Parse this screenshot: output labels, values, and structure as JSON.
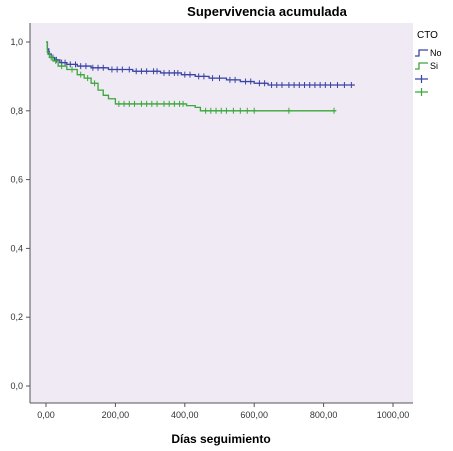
{
  "chart_data": {
    "type": "line",
    "title": "Supervivencia acumulada",
    "xlabel": "Días seguimiento",
    "ylabel": "",
    "xlim": [
      0,
      1000
    ],
    "ylim": [
      0,
      1.0
    ],
    "x_ticks": [
      {
        "value": 0,
        "label": "0,00"
      },
      {
        "value": 200,
        "label": "200,00"
      },
      {
        "value": 400,
        "label": "400,00"
      },
      {
        "value": 600,
        "label": "600,00"
      },
      {
        "value": 800,
        "label": "800,00"
      },
      {
        "value": 1000,
        "label": "1000,00"
      }
    ],
    "y_ticks": [
      {
        "value": 0,
        "label": "0,0"
      },
      {
        "value": 0.2,
        "label": "0,2"
      },
      {
        "value": 0.4,
        "label": "0,4"
      },
      {
        "value": 0.6,
        "label": "0,6"
      },
      {
        "value": 0.8,
        "label": "0,8"
      },
      {
        "value": 1.0,
        "label": "1,0"
      }
    ],
    "grid": false,
    "background": "#efeaf3",
    "legend": {
      "title": "CTO",
      "placement": "right",
      "entries": [
        {
          "label": "No",
          "kind": "line",
          "series": 0
        },
        {
          "label": "Si",
          "kind": "line",
          "series": 1
        },
        {
          "label": "",
          "kind": "censor",
          "series": 0
        },
        {
          "label": "",
          "kind": "censor",
          "series": 1
        }
      ]
    },
    "series": [
      {
        "name": "No",
        "color": "#3a43a6",
        "steps": [
          [
            0,
            1.0
          ],
          [
            4,
            0.98
          ],
          [
            8,
            0.965
          ],
          [
            15,
            0.955
          ],
          [
            25,
            0.948
          ],
          [
            40,
            0.94
          ],
          [
            60,
            0.935
          ],
          [
            90,
            0.93
          ],
          [
            130,
            0.925
          ],
          [
            180,
            0.92
          ],
          [
            250,
            0.915
          ],
          [
            330,
            0.91
          ],
          [
            390,
            0.905
          ],
          [
            430,
            0.9
          ],
          [
            470,
            0.895
          ],
          [
            520,
            0.89
          ],
          [
            560,
            0.885
          ],
          [
            600,
            0.88
          ],
          [
            640,
            0.875
          ],
          [
            890,
            0.875
          ]
        ],
        "censored": [
          10,
          20,
          30,
          45,
          55,
          70,
          85,
          100,
          115,
          135,
          150,
          165,
          190,
          205,
          220,
          240,
          260,
          275,
          290,
          310,
          320,
          340,
          355,
          370,
          380,
          400,
          415,
          440,
          455,
          480,
          500,
          530,
          545,
          575,
          590,
          615,
          630,
          650,
          665,
          680,
          700,
          715,
          730,
          745,
          760,
          775,
          790,
          805,
          820,
          840,
          860,
          880
        ]
      },
      {
        "name": "Si",
        "color": "#3aa83a",
        "steps": [
          [
            0,
            1.0
          ],
          [
            4,
            0.97
          ],
          [
            10,
            0.955
          ],
          [
            20,
            0.945
          ],
          [
            35,
            0.93
          ],
          [
            60,
            0.92
          ],
          [
            90,
            0.905
          ],
          [
            110,
            0.895
          ],
          [
            130,
            0.88
          ],
          [
            150,
            0.86
          ],
          [
            165,
            0.845
          ],
          [
            180,
            0.835
          ],
          [
            200,
            0.82
          ],
          [
            405,
            0.815
          ],
          [
            430,
            0.81
          ],
          [
            445,
            0.8
          ],
          [
            835,
            0.8
          ]
        ],
        "censored": [
          15,
          28,
          45,
          75,
          100,
          120,
          140,
          210,
          225,
          240,
          255,
          275,
          290,
          305,
          320,
          340,
          355,
          370,
          385,
          395,
          460,
          475,
          490,
          505,
          520,
          540,
          560,
          580,
          600,
          700,
          830
        ]
      }
    ]
  }
}
